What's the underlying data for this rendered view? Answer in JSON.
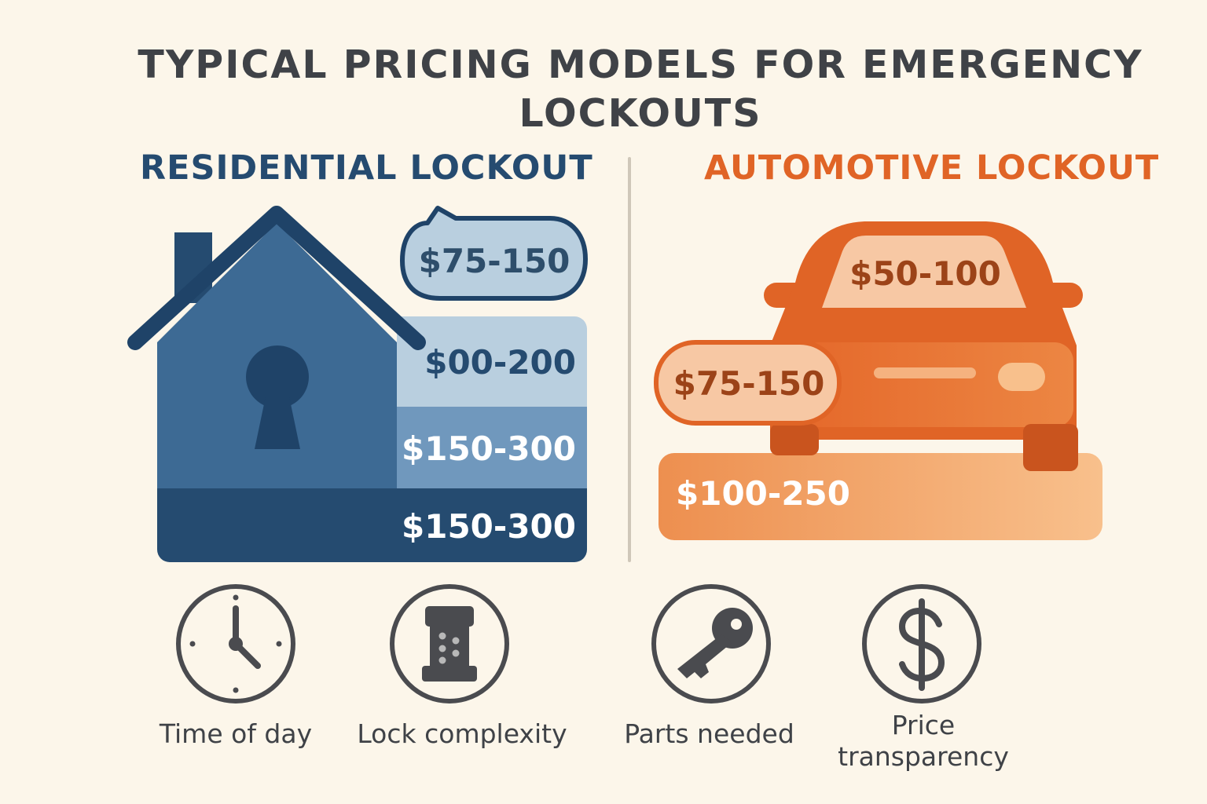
{
  "title": "TYPICAL PRICING MODELS FOR EMERGENCY LOCKOUTS",
  "residential": {
    "heading": "RESIDENTIAL LOCKOUT",
    "bubble_price": "$75-150",
    "tiers": [
      "$00-200",
      "$150-300",
      "$150-300"
    ]
  },
  "automotive": {
    "heading": "AUTOMOTIVE LOCKOUT",
    "windshield_price": "$50-100",
    "side_price": "$75-150",
    "base_price": "$100-250"
  },
  "factors": [
    {
      "label": "Time of day",
      "icon": "clock-icon"
    },
    {
      "label": "Lock complexity",
      "icon": "lock-cylinder-icon"
    },
    {
      "label": "Parts needed",
      "icon": "key-icon"
    },
    {
      "label": "Price transparency",
      "icon": "dollar-icon"
    }
  ],
  "colors": {
    "background": "#fcf6ea",
    "residential_dark": "#254b70",
    "residential_mid": "#3d6a94",
    "residential_light": "#b9cfdf",
    "automotive_main": "#e06426",
    "automotive_light": "#f7c8a4",
    "text_dark": "#3f4247"
  }
}
